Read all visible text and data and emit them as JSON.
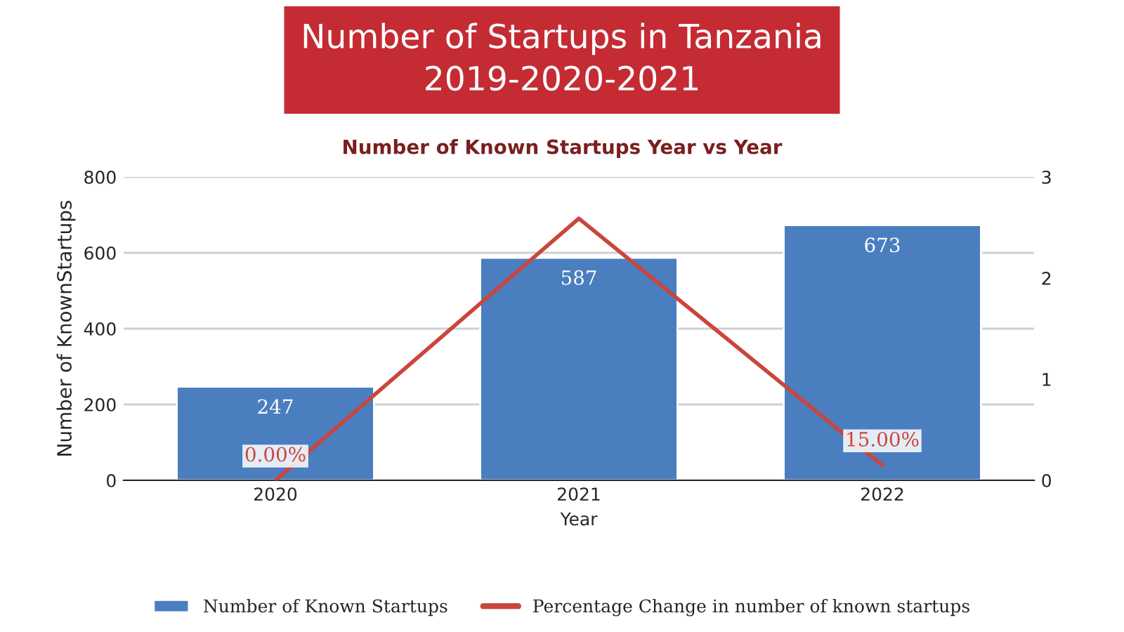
{
  "chart_data": {
    "type": "bar",
    "title": "Number of Startups in Tanzania\n2019-2020-2021",
    "subtitle": "Number of Known Startups Year vs Year",
    "xlabel": "Year",
    "ylabel": "Number of KnownStartups",
    "categories": [
      "2020",
      "2021",
      "2022"
    ],
    "series": [
      {
        "name": "Number of Known Startups",
        "color": "#4a7ebf",
        "values": [
          247,
          587,
          673
        ],
        "value_labels": [
          "247",
          "587",
          "673"
        ]
      },
      {
        "name": "Percentage Change in number of known startups",
        "type": "line",
        "axis": "y2",
        "color": "#c9463d",
        "values": [
          0,
          2.59,
          0.15
        ],
        "value_labels": [
          "0.00%",
          null,
          "15.00%"
        ]
      }
    ],
    "ylim": [
      0,
      800
    ],
    "yticks": [
      0,
      200,
      400,
      600,
      800
    ],
    "y2lim": [
      0,
      3
    ],
    "y2ticks": [
      0,
      1,
      2,
      3
    ],
    "grid": "y",
    "legend": "bottom",
    "marker": "none",
    "line_style": "solid"
  }
}
